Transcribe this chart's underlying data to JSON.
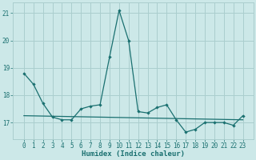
{
  "title": "",
  "xlabel": "Humidex (Indice chaleur)",
  "background_color": "#cce8e8",
  "grid_color": "#aacece",
  "line_color": "#1a7070",
  "x_data": [
    0,
    1,
    2,
    3,
    4,
    5,
    6,
    7,
    8,
    9,
    10,
    11,
    12,
    13,
    14,
    15,
    16,
    17,
    18,
    19,
    20,
    21,
    22,
    23
  ],
  "y_data1": [
    18.8,
    18.4,
    17.7,
    17.2,
    17.1,
    17.1,
    17.5,
    17.6,
    17.65,
    19.4,
    21.1,
    20.0,
    17.4,
    17.35,
    17.55,
    17.65,
    17.1,
    16.65,
    16.75,
    17.0,
    17.0,
    17.0,
    16.9,
    17.25
  ],
  "y_data2_x": [
    0,
    23
  ],
  "y_data2_y": [
    17.25,
    17.1
  ],
  "ylim": [
    16.4,
    21.4
  ],
  "yticks": [
    17,
    18,
    19,
    20,
    21
  ],
  "ytick_labels": [
    "17",
    "18",
    "19",
    "20",
    "21"
  ],
  "xticks": [
    0,
    1,
    2,
    3,
    4,
    5,
    6,
    7,
    8,
    9,
    10,
    11,
    12,
    13,
    14,
    15,
    16,
    17,
    18,
    19,
    20,
    21,
    22,
    23
  ],
  "tick_fontsize": 5.5,
  "xlabel_fontsize": 6.5
}
